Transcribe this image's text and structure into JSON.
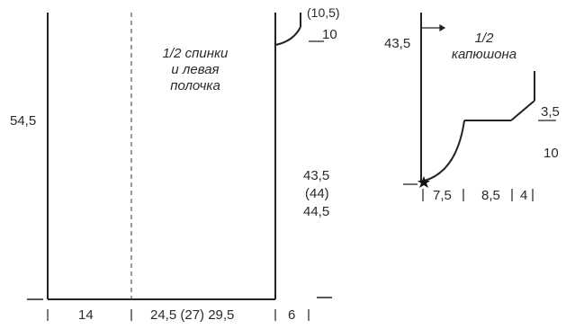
{
  "back_piece": {
    "title_line1": "1/2 спинки",
    "title_line2": "и левая",
    "title_line3": "полочка",
    "height_left": "54,5",
    "neck_value_top": "(10,5)",
    "neck_value": "10",
    "side_height_1": "43,5",
    "side_height_2": "(44)",
    "side_height_3": "44,5",
    "width_left": "14",
    "width_main": "24,5 (27) 29,5",
    "width_extra": "6"
  },
  "hood_piece": {
    "title_line1": "1/2",
    "title_line2": "капюшона",
    "height_left": "43,5",
    "height_right_top": "3,5",
    "height_right_bottom": "10",
    "width_1": "7,5",
    "width_2": "8,5",
    "width_3": "4"
  },
  "colors": {
    "line": "#222222",
    "dashed": "#555555",
    "background": "#ffffff"
  }
}
